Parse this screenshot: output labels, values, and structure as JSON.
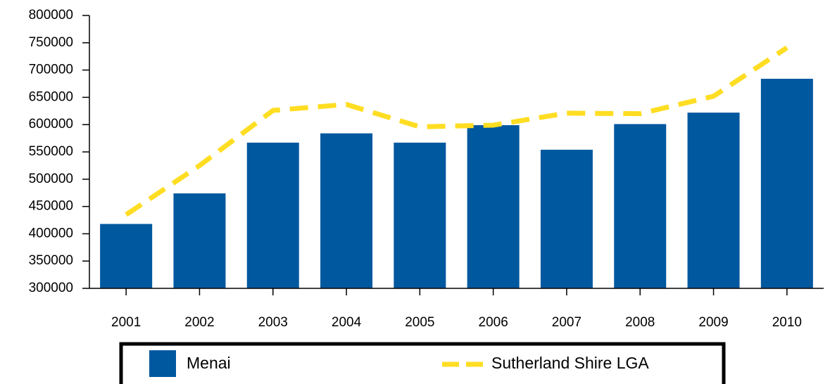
{
  "chart_data": {
    "type": "bar",
    "categories": [
      "2001",
      "2002",
      "2003",
      "2004",
      "2005",
      "2006",
      "2007",
      "2008",
      "2009",
      "2010"
    ],
    "series": [
      {
        "name": "Menai",
        "type": "bar",
        "color": "#00589f",
        "values": [
          418000,
          474000,
          567000,
          584000,
          567000,
          599000,
          554000,
          601000,
          622000,
          684000
        ]
      },
      {
        "name": "Sutherland Shire LGA",
        "type": "line",
        "color": "#ffdd22",
        "values": [
          435000,
          525000,
          626000,
          637000,
          596000,
          599000,
          621000,
          620000,
          652000,
          741000
        ]
      }
    ],
    "ylim": [
      300000,
      800000
    ],
    "yticks": [
      300000,
      350000,
      400000,
      450000,
      500000,
      550000,
      600000,
      650000,
      700000,
      750000,
      800000
    ],
    "legend": "bottom"
  }
}
